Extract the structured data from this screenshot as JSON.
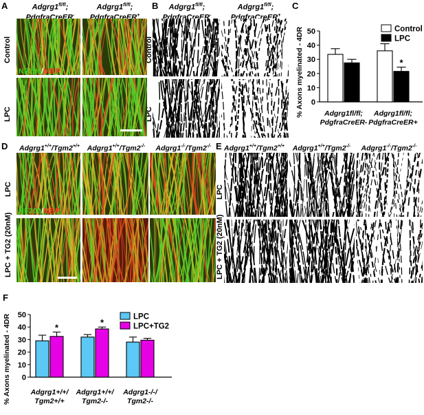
{
  "panels": {
    "A": {
      "label": "A",
      "col_headers": [
        "Adgrg1fl/fl; PdgfraCreER-",
        "Adgrg1fl/fl; PdgfraCreER+"
      ],
      "row_labels": [
        "Control",
        "LPC"
      ],
      "stain": {
        "green": "NF200",
        "sep": "/",
        "red": "MBP"
      }
    },
    "B": {
      "label": "B",
      "col_headers": [
        "Adgrg1fl/fl; PdgfraCreER-",
        "Adgrg1fl/fl; PdgfraCreER+"
      ],
      "row_labels": [
        "Control",
        "LPC"
      ]
    },
    "C": {
      "label": "C"
    },
    "D": {
      "label": "D",
      "col_headers": [
        "Adgrg1+/+/Tgm2+/+",
        "Adgrg1+/+/Tgm2-/-",
        "Adgrg1-/-/Tgm2-/-"
      ],
      "row_labels": [
        "LPC",
        "LPC + TG2 (20nM)"
      ],
      "stain": {
        "green": "NF200",
        "sep": "/",
        "red": "MBP"
      }
    },
    "E": {
      "label": "E",
      "col_headers": [
        "Adgrg1+/+/Tgm2+/+",
        "Adgrg1+/+/Tgm2-/-",
        "Adgrg1-/-/Tgm2-/-"
      ],
      "row_labels": [
        "LPC",
        "LPC + TG2 (20nM)"
      ]
    },
    "F": {
      "label": "F"
    }
  },
  "headers_rich": {
    "a1": {
      "l1": "Adgrg1",
      "s1": "fl/fl",
      "p1": ";",
      "l2": "PdgfraCreER",
      "s2": "-"
    },
    "a2": {
      "l1": "Adgrg1",
      "s1": "fl/fl",
      "p1": ";",
      "l2": "PdgfraCreER",
      "s2": "+"
    },
    "d1": {
      "a": "Adgrg1",
      "as": "+/+",
      "b": "/Tgm2",
      "bs": "+/+"
    },
    "d2": {
      "a": "Adgrg1",
      "as": "+/+",
      "b": "/Tgm2",
      "bs": "-/-"
    },
    "d3": {
      "a": "Adgrg1",
      "as": "-/-",
      "b": "/Tgm2",
      "bs": "-/-"
    }
  },
  "colors": {
    "control": "#ffffff",
    "lpc": "#000000",
    "lpc_f": "#5bc8f5",
    "tg2": "#e600e6",
    "axon_green": "#3fb520",
    "myelin_red": "#d8321c"
  },
  "chart_data": [
    {
      "type": "bar",
      "panel": "C",
      "categories": [
        "Adgrg1fl/fl; PdgfraCreER-",
        "Adgrg1fl/fl; PdgfraCreER+"
      ],
      "category_lines": [
        [
          "Adgrg1fl/fl;",
          "PdgfraCreER-"
        ],
        [
          "Adgrg1fl/fl;",
          "PdgfraCreER+"
        ]
      ],
      "series": [
        {
          "name": "Control",
          "values": [
            33.5,
            36.0
          ],
          "errors": [
            4.0,
            5.0
          ]
        },
        {
          "name": "LPC",
          "values": [
            27.5,
            21.5
          ],
          "errors": [
            2.5,
            3.0
          ]
        }
      ],
      "significance": [
        {
          "series": 1,
          "category": 1,
          "mark": "*"
        }
      ],
      "ylabel": "% Axons myelinated - 4DR",
      "ylim": [
        0,
        50
      ],
      "yticks": [
        0,
        10,
        20,
        30,
        40,
        50
      ],
      "legend": "top-right"
    },
    {
      "type": "bar",
      "panel": "F",
      "categories": [
        "Adgrg1+/+/Tgm2+/+",
        "Adgrg1+/+/Tgm2-/-",
        "Adgrg1-/-/Tgm2-/-"
      ],
      "category_lines": [
        [
          "Adgrg1+/+/",
          "Tgm2+/+"
        ],
        [
          "Adgrg1+/+/",
          "Tgm2-/-"
        ],
        [
          "Adgrg1-/-/",
          "Tgm2-/-"
        ]
      ],
      "series": [
        {
          "name": "LPC",
          "values": [
            29.0,
            32.0,
            28.0
          ],
          "errors": [
            4.5,
            2.0,
            4.0
          ]
        },
        {
          "name": "LPC+TG2",
          "values": [
            32.5,
            38.5,
            29.5
          ],
          "errors": [
            3.5,
            1.5,
            1.5
          ]
        }
      ],
      "significance": [
        {
          "series": 1,
          "category": 0,
          "mark": "*"
        },
        {
          "series": 1,
          "category": 1,
          "mark": "*"
        }
      ],
      "ylabel": "% Axons myelinated - 4DR",
      "ylim": [
        0,
        50
      ],
      "yticks": [
        0,
        10,
        20,
        30,
        40,
        50
      ],
      "legend": "top-right"
    }
  ]
}
